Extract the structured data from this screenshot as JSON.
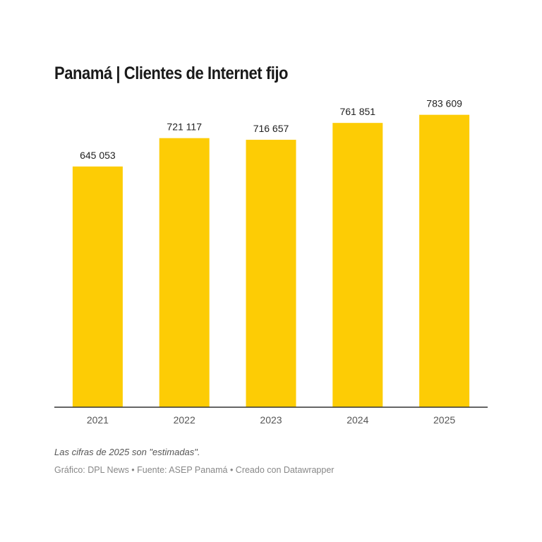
{
  "chart_data": {
    "type": "bar",
    "title": "Panamá | Clientes de Internet fijo",
    "categories": [
      "2021",
      "2022",
      "2023",
      "2024",
      "2025"
    ],
    "values": [
      645053,
      721117,
      716657,
      761851,
      783609
    ],
    "value_labels": [
      "645 053",
      "721 117",
      "716 657",
      "761 851",
      "783 609"
    ],
    "xlabel": "",
    "ylabel": "",
    "ylim": [
      0,
      800000
    ],
    "grid": false,
    "bar_color": "#FDCC05"
  },
  "notes": "Las cifras de 2025 son \"estimadas\".",
  "credit": "Gráfico: DPL News • Fuente: ASEP Panamá • Creado con Datawrapper"
}
